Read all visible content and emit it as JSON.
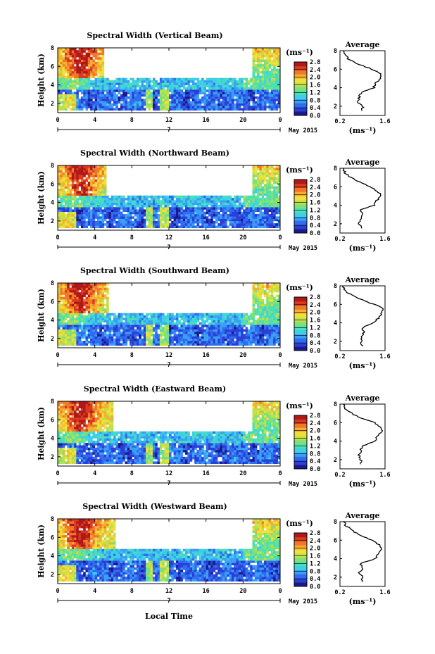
{
  "figure": {
    "xlabel": "Local Time",
    "date_day": "7",
    "date_label": "May 2015"
  },
  "colormap": [
    "#1a1a8c",
    "#2a3fd6",
    "#2f6cf0",
    "#3aa0f5",
    "#3cd0e8",
    "#48e0b4",
    "#7ee07a",
    "#c0e04a",
    "#f0e03a",
    "#f5b030",
    "#f07828",
    "#d83a20",
    "#b01818"
  ],
  "chart_data": [
    {
      "type": "heatmap",
      "title": "Spectral Width (Vertical Beam)",
      "ylabel": "Height (km)",
      "x_ticks": [
        "0",
        "4",
        "8",
        "12",
        "16",
        "20",
        "0"
      ],
      "xlim": [
        0,
        24
      ],
      "y_ticks": [
        "2",
        "4",
        "6",
        "8"
      ],
      "ylim": [
        1,
        8
      ],
      "colorbar": {
        "unit": "(ms⁻¹)",
        "ticks": [
          "0.0",
          "0.4",
          "0.8",
          "1.2",
          "1.6",
          "2.0",
          "2.4",
          "2.8"
        ],
        "range": [
          0.0,
          2.8
        ]
      },
      "side_plot": {
        "type": "line",
        "title": "Average",
        "xlabel": "(ms⁻¹)",
        "x_ticks": [
          "0.2",
          "1.6"
        ],
        "xlim": [
          0.2,
          1.6
        ],
        "y_ticks": [
          "2",
          "4",
          "6",
          "8"
        ],
        "ylim": [
          1,
          8
        ],
        "height_km": [
          1.5,
          2.0,
          2.5,
          3.0,
          3.5,
          4.0,
          4.5,
          5.0,
          5.5,
          6.0,
          6.5,
          7.0,
          7.5,
          8.0
        ],
        "value": [
          0.9,
          0.9,
          0.75,
          0.8,
          0.85,
          1.25,
          1.3,
          1.5,
          1.45,
          1.2,
          0.8,
          0.5,
          0.35,
          0.3
        ]
      }
    },
    {
      "type": "heatmap",
      "title": "Spectral Width (Northward Beam)",
      "ylabel": "Height (km)",
      "x_ticks": [
        "0",
        "4",
        "8",
        "12",
        "16",
        "20",
        "0"
      ],
      "xlim": [
        0,
        24
      ],
      "y_ticks": [
        "2",
        "4",
        "6",
        "8"
      ],
      "ylim": [
        1,
        8
      ],
      "colorbar": {
        "unit": "(ms⁻¹)",
        "ticks": [
          "0.0",
          "0.4",
          "0.8",
          "1.2",
          "1.6",
          "2.0",
          "2.4",
          "2.8"
        ],
        "range": [
          0.0,
          2.8
        ]
      },
      "side_plot": {
        "type": "line",
        "title": "Average",
        "xlabel": "(ms⁻¹)",
        "x_ticks": [
          "0.2",
          "1.6"
        ],
        "xlim": [
          0.2,
          1.6
        ],
        "height_km": [
          1.5,
          2.0,
          2.5,
          3.0,
          3.5,
          4.0,
          4.5,
          5.0,
          5.5,
          6.0,
          6.5,
          7.0,
          7.5,
          8.0
        ],
        "value": [
          0.85,
          0.8,
          0.85,
          0.9,
          0.85,
          1.25,
          1.35,
          1.5,
          1.35,
          1.15,
          0.8,
          0.55,
          0.35,
          0.3
        ]
      }
    },
    {
      "type": "heatmap",
      "title": "Spectral Width (Southward Beam)",
      "ylabel": "Height (km)",
      "x_ticks": [
        "0",
        "4",
        "8",
        "12",
        "16",
        "20",
        "0"
      ],
      "xlim": [
        0,
        24
      ],
      "y_ticks": [
        "2",
        "4",
        "6",
        "8"
      ],
      "ylim": [
        1,
        8
      ],
      "colorbar": {
        "unit": "(ms⁻¹)",
        "ticks": [
          "0.0",
          "0.4",
          "0.8",
          "1.2",
          "1.6",
          "2.0",
          "2.4",
          "2.8"
        ],
        "range": [
          0.0,
          2.8
        ]
      },
      "side_plot": {
        "type": "line",
        "title": "Average",
        "xlabel": "(ms⁻¹)",
        "x_ticks": [
          "0.2",
          "1.6"
        ],
        "xlim": [
          0.2,
          1.6
        ],
        "height_km": [
          1.5,
          2.0,
          2.5,
          3.0,
          3.5,
          4.0,
          4.5,
          5.0,
          5.5,
          6.0,
          6.5,
          7.0,
          7.5,
          8.0
        ],
        "value": [
          0.9,
          0.85,
          0.9,
          0.95,
          0.9,
          1.2,
          1.4,
          1.5,
          1.55,
          1.25,
          0.9,
          0.55,
          0.35,
          0.3
        ]
      }
    },
    {
      "type": "heatmap",
      "title": "Spectral Width (Eastward Beam)",
      "ylabel": "Height (km)",
      "x_ticks": [
        "0",
        "4",
        "8",
        "12",
        "16",
        "20",
        "0"
      ],
      "xlim": [
        0,
        24
      ],
      "y_ticks": [
        "2",
        "4",
        "6",
        "8"
      ],
      "ylim": [
        1,
        8
      ],
      "colorbar": {
        "unit": "(ms⁻¹)",
        "ticks": [
          "0.0",
          "0.4",
          "0.8",
          "1.2",
          "1.6",
          "2.0",
          "2.4",
          "2.8"
        ],
        "range": [
          0.0,
          2.8
        ]
      },
      "side_plot": {
        "type": "line",
        "title": "Average",
        "xlabel": "(ms⁻¹)",
        "x_ticks": [
          "0.2",
          "1.6"
        ],
        "xlim": [
          0.2,
          1.6
        ],
        "height_km": [
          1.5,
          2.0,
          2.5,
          3.0,
          3.5,
          4.0,
          4.5,
          5.0,
          5.5,
          6.0,
          6.5,
          7.0,
          7.5,
          8.0
        ],
        "value": [
          0.85,
          0.85,
          0.8,
          0.85,
          0.9,
          1.3,
          1.35,
          1.5,
          1.45,
          1.3,
          0.85,
          0.55,
          0.35,
          0.3
        ]
      }
    },
    {
      "type": "heatmap",
      "title": "Spectral Width (Westward Beam)",
      "ylabel": "Height (km)",
      "x_ticks": [
        "0",
        "4",
        "8",
        "12",
        "16",
        "20",
        "0"
      ],
      "xlim": [
        0,
        24
      ],
      "y_ticks": [
        "2",
        "4",
        "6",
        "8"
      ],
      "ylim": [
        1,
        8
      ],
      "colorbar": {
        "unit": "(ms⁻¹)",
        "ticks": [
          "0.0",
          "0.4",
          "0.8",
          "1.2",
          "1.6",
          "2.0",
          "2.4",
          "2.8"
        ],
        "range": [
          0.0,
          2.8
        ]
      },
      "side_plot": {
        "type": "line",
        "title": "Average",
        "xlabel": "(ms⁻¹)",
        "x_ticks": [
          "0.2",
          "1.6"
        ],
        "xlim": [
          0.2,
          1.6
        ],
        "height_km": [
          1.5,
          2.0,
          2.5,
          3.0,
          3.5,
          4.0,
          4.5,
          5.0,
          5.5,
          6.0,
          6.5,
          7.0,
          7.5,
          8.0
        ],
        "value": [
          0.85,
          0.9,
          0.8,
          0.9,
          0.85,
          1.3,
          1.4,
          1.5,
          1.4,
          1.2,
          0.85,
          0.6,
          0.4,
          0.3
        ]
      }
    }
  ]
}
